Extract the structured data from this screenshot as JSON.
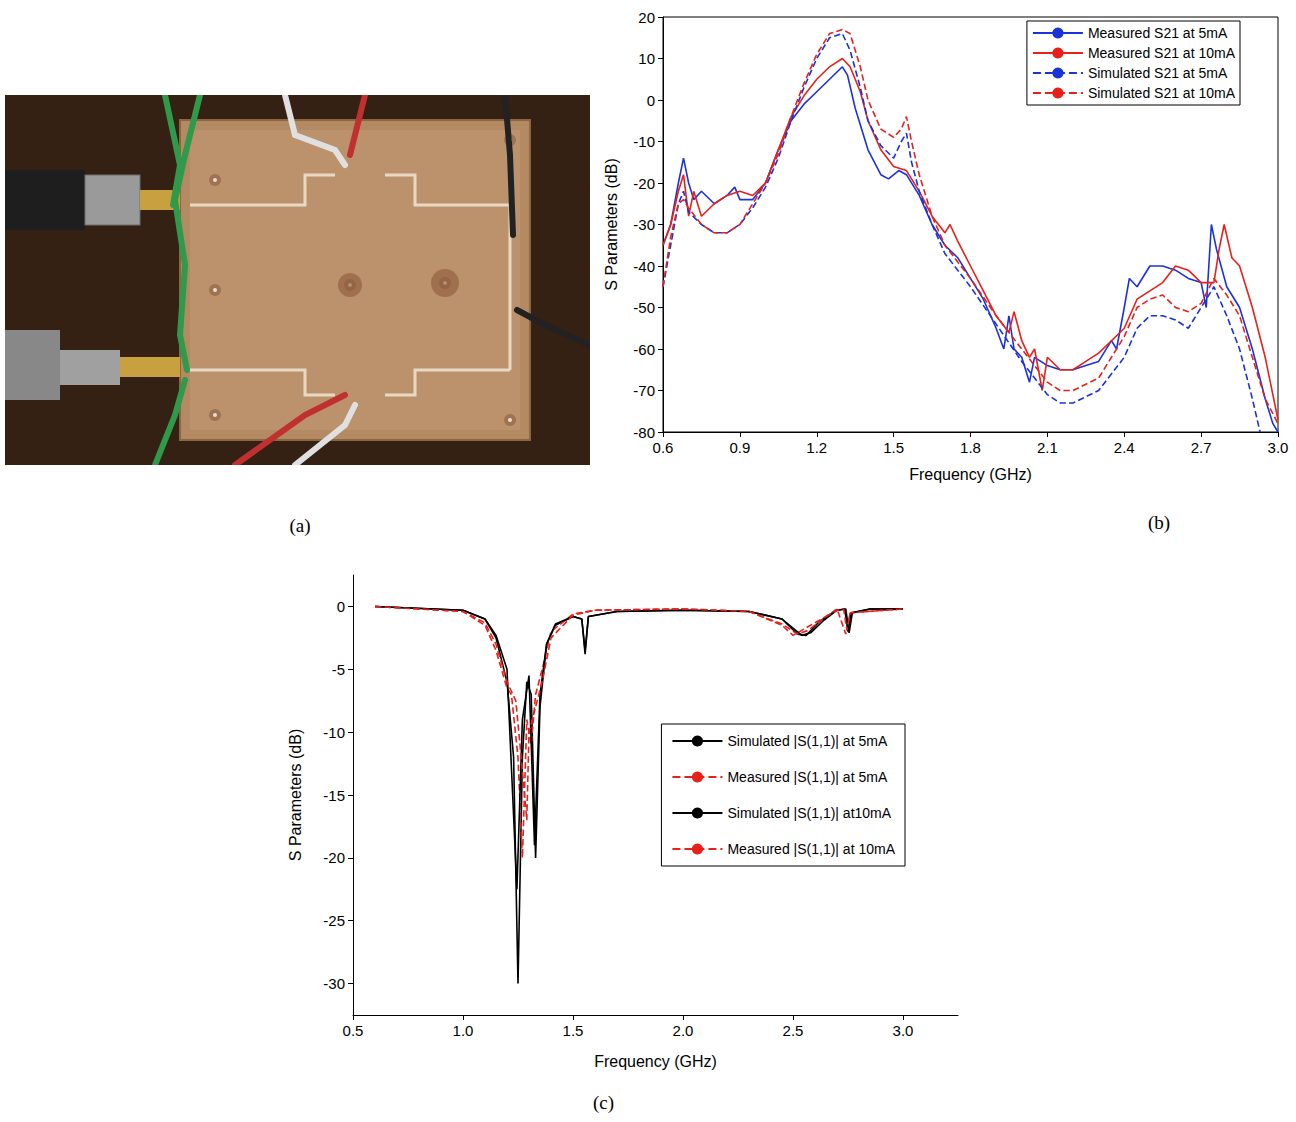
{
  "photo": {
    "caption": "(a)"
  },
  "chart_data": [
    {
      "type": "line",
      "caption": "(b)",
      "xlabel": "Frequency (GHz)",
      "ylabel": "S Parameters (dB)",
      "xlim": [
        0.6,
        3.0
      ],
      "xticks": [
        0.6,
        0.9,
        1.2,
        1.5,
        1.8,
        2.1,
        2.4,
        2.7,
        {
          "value": 3,
          "label": "3.0"
        }
      ],
      "ylim": [
        -80,
        20
      ],
      "yticks": [
        -80,
        -70,
        -60,
        -50,
        -40,
        -30,
        -20,
        -10,
        0,
        10,
        20
      ],
      "grid": false,
      "legend": "upper right",
      "marker": "none",
      "series": [
        {
          "name": "Measured S21 at 5mA",
          "color": "#1a33d9",
          "line_style": "solid",
          "x": [
            0.6,
            0.63,
            0.66,
            0.68,
            0.7,
            0.72,
            0.75,
            0.8,
            0.85,
            0.88,
            0.9,
            0.95,
            1.0,
            1.05,
            1.1,
            1.15,
            1.2,
            1.25,
            1.3,
            1.32,
            1.35,
            1.4,
            1.45,
            1.48,
            1.52,
            1.55,
            1.6,
            1.65,
            1.7,
            1.75,
            1.8,
            1.85,
            1.9,
            1.93,
            1.95,
            1.97,
            2.0,
            2.03,
            2.05,
            2.1,
            2.15,
            2.2,
            2.25,
            2.3,
            2.35,
            2.37,
            2.4,
            2.42,
            2.45,
            2.5,
            2.55,
            2.6,
            2.65,
            2.7,
            2.72,
            2.74,
            2.76,
            2.8,
            2.85,
            2.9,
            2.95,
            2.98,
            3.0
          ],
          "values": [
            -35,
            -30,
            -20,
            -14,
            -20,
            -24,
            -22,
            -25,
            -23,
            -21,
            -24,
            -24,
            -20,
            -12,
            -5,
            -1,
            2,
            5,
            8,
            6,
            -2,
            -12,
            -18,
            -19,
            -17,
            -18,
            -23,
            -30,
            -35,
            -38,
            -43,
            -48,
            -55,
            -60,
            -52,
            -60,
            -62,
            -68,
            -62,
            -64,
            -65,
            -65,
            -64,
            -63,
            -58,
            -60,
            -50,
            -43,
            -45,
            -40,
            -40,
            -41,
            -43,
            -44,
            -50,
            -30,
            -36,
            -45,
            -50,
            -60,
            -72,
            -78,
            -80
          ]
        },
        {
          "name": "Measured S21 at 10mA",
          "color": "#e6211b",
          "line_style": "solid",
          "x": [
            0.6,
            0.63,
            0.66,
            0.68,
            0.7,
            0.72,
            0.75,
            0.8,
            0.85,
            0.9,
            0.95,
            1.0,
            1.05,
            1.1,
            1.15,
            1.2,
            1.25,
            1.3,
            1.33,
            1.37,
            1.4,
            1.45,
            1.5,
            1.55,
            1.6,
            1.65,
            1.7,
            1.72,
            1.75,
            1.8,
            1.85,
            1.9,
            1.95,
            1.97,
            2.0,
            2.03,
            2.05,
            2.08,
            2.1,
            2.15,
            2.2,
            2.25,
            2.3,
            2.35,
            2.4,
            2.45,
            2.5,
            2.55,
            2.6,
            2.65,
            2.7,
            2.75,
            2.77,
            2.79,
            2.82,
            2.85,
            2.9,
            2.95,
            3.0
          ],
          "values": [
            -35,
            -30,
            -22,
            -18,
            -28,
            -22,
            -28,
            -25,
            -23,
            -22,
            -23,
            -20,
            -12,
            -4,
            1,
            5,
            8,
            10,
            8,
            2,
            -5,
            -12,
            -16,
            -17,
            -22,
            -28,
            -32,
            -30,
            -34,
            -40,
            -46,
            -52,
            -56,
            -51,
            -58,
            -62,
            -60,
            -70,
            -62,
            -65,
            -65,
            -63,
            -61,
            -58,
            -55,
            -48,
            -46,
            -44,
            -40,
            -41,
            -44,
            -44,
            -36,
            -30,
            -38,
            -40,
            -50,
            -62,
            -77
          ]
        },
        {
          "name": "Simulated S21 at 5mA",
          "color": "#1a33d9",
          "line_style": "dashed",
          "x": [
            0.6,
            0.63,
            0.66,
            0.68,
            0.7,
            0.75,
            0.8,
            0.85,
            0.9,
            0.95,
            1.0,
            1.05,
            1.1,
            1.15,
            1.2,
            1.25,
            1.3,
            1.33,
            1.37,
            1.4,
            1.45,
            1.5,
            1.53,
            1.55,
            1.57,
            1.6,
            1.65,
            1.7,
            1.8,
            1.9,
            2.0,
            2.1,
            2.15,
            2.2,
            2.3,
            2.4,
            2.45,
            2.5,
            2.55,
            2.6,
            2.65,
            2.7,
            2.75,
            2.8,
            2.85,
            2.9,
            2.93
          ],
          "values": [
            -45,
            -35,
            -25,
            -22,
            -27,
            -30,
            -32,
            -32,
            -30,
            -26,
            -21,
            -14,
            -5,
            3,
            10,
            15,
            16,
            12,
            3,
            -5,
            -11,
            -14,
            -10,
            -8,
            -15,
            -22,
            -30,
            -37,
            -45,
            -54,
            -63,
            -71,
            -73,
            -73,
            -70,
            -62,
            -55,
            -52,
            -52,
            -53,
            -55,
            -50,
            -45,
            -52,
            -60,
            -72,
            -80
          ]
        },
        {
          "name": "Simulated S21 at 10mA",
          "color": "#e6211b",
          "line_style": "dashed",
          "x": [
            0.6,
            0.63,
            0.66,
            0.68,
            0.7,
            0.75,
            0.8,
            0.85,
            0.9,
            0.95,
            1.0,
            1.05,
            1.1,
            1.15,
            1.2,
            1.25,
            1.3,
            1.33,
            1.37,
            1.4,
            1.45,
            1.5,
            1.53,
            1.55,
            1.57,
            1.6,
            1.65,
            1.7,
            1.8,
            1.9,
            2.0,
            2.1,
            2.15,
            2.2,
            2.3,
            2.4,
            2.45,
            2.5,
            2.55,
            2.6,
            2.65,
            2.7,
            2.75,
            2.8,
            2.85,
            2.9,
            2.95,
            3.0
          ],
          "values": [
            -45,
            -33,
            -25,
            -24,
            -26,
            -30,
            -32,
            -32,
            -30,
            -25,
            -20,
            -13,
            -4,
            4,
            11,
            16,
            17,
            16,
            8,
            0,
            -7,
            -9,
            -7,
            -4,
            -10,
            -18,
            -28,
            -35,
            -43,
            -52,
            -60,
            -68,
            -70,
            -70,
            -67,
            -57,
            -50,
            -48,
            -47,
            -50,
            -51,
            -49,
            -43,
            -47,
            -52,
            -62,
            -72,
            -78
          ]
        }
      ]
    },
    {
      "type": "line",
      "caption": "(c)",
      "xlabel": "Frequency (GHz)",
      "ylabel": "S Parameters (dB)",
      "xlim": [
        0.5,
        3.25
      ],
      "xticks": [
        0.5,
        {
          "value": 1,
          "label": "1.0"
        },
        1.5,
        {
          "value": 2,
          "label": "2.0"
        },
        2.5,
        {
          "value": 3,
          "label": "3.0"
        }
      ],
      "ylim": [
        -32.5,
        2.5
      ],
      "yticks": [
        -30,
        -25,
        -20,
        -15,
        -10,
        -5,
        0
      ],
      "grid": false,
      "legend": "right",
      "marker": "none",
      "series": [
        {
          "name": "Simulated |S(1,1)| at 5mA",
          "color": "#000000",
          "line_style": "solid",
          "x": [
            0.6,
            1.0,
            1.1,
            1.15,
            1.2,
            1.23,
            1.25,
            1.27,
            1.29,
            1.31,
            1.33,
            1.35,
            1.38,
            1.42,
            1.5,
            1.54,
            1.555,
            1.57,
            1.7,
            2.0,
            2.3,
            2.45,
            2.52,
            2.56,
            2.62,
            2.7,
            2.74,
            2.755,
            2.77,
            2.85,
            3.0
          ],
          "values": [
            0,
            -0.3,
            -1,
            -2.5,
            -6,
            -12,
            -30,
            -12,
            -6,
            -7,
            -20,
            -8,
            -3,
            -1.5,
            -0.8,
            -1,
            -3.8,
            -0.8,
            -0.4,
            -0.3,
            -0.4,
            -1,
            -2.2,
            -2.3,
            -1.2,
            -0.3,
            -0.2,
            -2.1,
            -0.5,
            -0.2,
            -0.2
          ]
        },
        {
          "name": "Measured |S(1,1)| at 5mA",
          "color": "#e6211b",
          "line_style": "dashed",
          "x": [
            0.6,
            1.0,
            1.1,
            1.15,
            1.2,
            1.22,
            1.25,
            1.27,
            1.29,
            1.31,
            1.33,
            1.36,
            1.4,
            1.5,
            1.6,
            2.0,
            2.3,
            2.45,
            2.5,
            2.55,
            2.65,
            2.7,
            2.74,
            2.76,
            3.0
          ],
          "values": [
            0,
            -0.4,
            -1.5,
            -3.5,
            -6.5,
            -7,
            -12,
            -20,
            -9,
            -11,
            -7,
            -5,
            -2,
            -0.6,
            -0.3,
            -0.2,
            -0.4,
            -1.5,
            -2.3,
            -1.8,
            -0.8,
            -0.2,
            -2.2,
            -0.5,
            -0.2
          ]
        },
        {
          "name": "Simulated |S(1,1)| at10mA",
          "color": "#000000",
          "line_style": "solid",
          "x": [
            0.6,
            1.0,
            1.1,
            1.15,
            1.2,
            1.245,
            1.27,
            1.3,
            1.325,
            1.35,
            1.38,
            1.42,
            1.5,
            1.54,
            1.555,
            1.57,
            1.7,
            2.0,
            2.3,
            2.45,
            2.54,
            2.58,
            2.64,
            2.7,
            2.735,
            2.75,
            2.765,
            2.85,
            3.0
          ],
          "values": [
            0,
            -0.3,
            -1,
            -2.3,
            -5,
            -22.5,
            -9,
            -5.5,
            -19,
            -7,
            -3,
            -1.4,
            -0.8,
            -1,
            -3.5,
            -0.8,
            -0.4,
            -0.3,
            -0.4,
            -1,
            -2.3,
            -2.1,
            -1.1,
            -0.3,
            -0.2,
            -2,
            -0.5,
            -0.2,
            -0.2
          ]
        },
        {
          "name": "Measured |S(1,1)| at 10mA",
          "color": "#e6211b",
          "line_style": "dashed",
          "x": [
            0.6,
            1.0,
            1.1,
            1.15,
            1.2,
            1.24,
            1.27,
            1.29,
            1.3,
            1.33,
            1.36,
            1.4,
            1.5,
            1.6,
            2.0,
            2.3,
            2.45,
            2.52,
            2.57,
            2.65,
            2.7,
            2.73,
            2.745,
            2.76,
            3.0
          ],
          "values": [
            0,
            -0.4,
            -1.3,
            -3,
            -6,
            -7.5,
            -13,
            -17,
            -10,
            -8,
            -6,
            -2.5,
            -0.7,
            -0.3,
            -0.2,
            -0.4,
            -1.4,
            -2.2,
            -1.9,
            -0.8,
            -0.3,
            -0.2,
            -1.9,
            -0.5,
            -0.2
          ]
        }
      ]
    }
  ]
}
